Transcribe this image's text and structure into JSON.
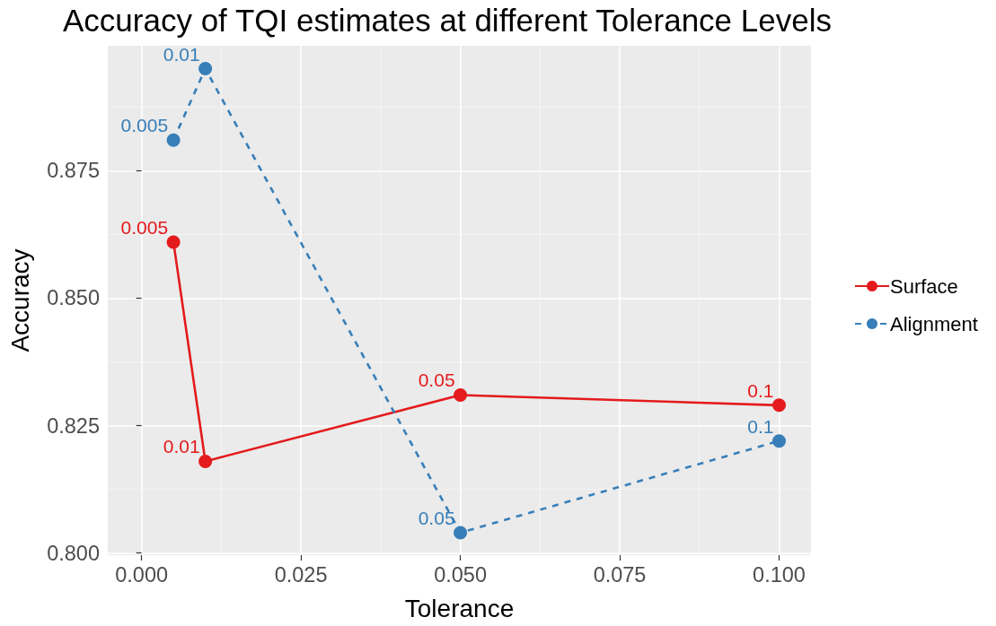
{
  "chart_data": {
    "type": "line",
    "title": "Accuracy of TQI estimates at different Tolerance Levels",
    "xlabel": "Tolerance",
    "ylabel": "Accuracy",
    "x": [
      0.005,
      0.01,
      0.05,
      0.1
    ],
    "series": [
      {
        "name": "Surface",
        "color": "#e41a1c",
        "values": [
          0.861,
          0.818,
          0.831,
          0.829
        ],
        "line_style": "solid"
      },
      {
        "name": "Alignment",
        "color": "#377eb8",
        "values": [
          0.881,
          0.895,
          0.804,
          0.822
        ],
        "line_style": "dashed"
      }
    ],
    "annotations": [
      {
        "text": "0.005",
        "x": 0.005,
        "y": 0.861
      },
      {
        "text": "0.01",
        "x": 0.01,
        "y": 0.818
      },
      {
        "text": "0.05",
        "x": 0.05,
        "y": 0.831
      },
      {
        "text": "0.1",
        "x": 0.1,
        "y": 0.829
      },
      {
        "text": "0.005",
        "x": 0.005,
        "y": 0.881
      },
      {
        "text": "0.01",
        "x": 0.01,
        "y": 0.895
      },
      {
        "text": "0.05",
        "x": 0.05,
        "y": 0.804
      },
      {
        "text": "0.1",
        "x": 0.1,
        "y": 0.822
      }
    ],
    "xlim": [
      -0.0053,
      0.105
    ],
    "xticks": [
      {
        "value": 0,
        "label": "0.000"
      },
      0.025,
      {
        "value": 0.05,
        "label": "0.050"
      },
      0.075,
      {
        "value": 0.1,
        "label": "0.100"
      }
    ],
    "ylim": [
      0.7996,
      0.8995
    ],
    "yticks": [
      {
        "value": 0.8,
        "label": "0.800"
      },
      0.825,
      {
        "value": 0.85,
        "label": "0.850"
      },
      0.875
    ],
    "grid": true,
    "legend": "right",
    "marker": "circle"
  }
}
